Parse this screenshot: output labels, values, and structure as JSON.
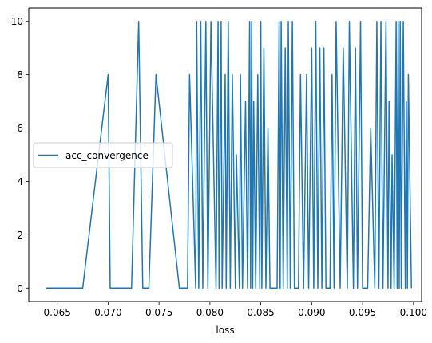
{
  "chart_data": {
    "type": "line",
    "xlabel": "loss",
    "ylabel": "",
    "xlim": [
      0.0622,
      0.1008
    ],
    "ylim": [
      -0.5,
      10.5
    ],
    "xticks": [
      0.065,
      0.07,
      0.075,
      0.08,
      0.085,
      0.09,
      0.095,
      0.1
    ],
    "xtick_labels": [
      "0.065",
      "0.070",
      "0.075",
      "0.080",
      "0.085",
      "0.090",
      "0.095",
      "0.100"
    ],
    "yticks": [
      0,
      2,
      4,
      6,
      8,
      10
    ],
    "ytick_labels": [
      "0",
      "2",
      "4",
      "6",
      "8",
      "10"
    ],
    "grid": false,
    "legend": "center-left",
    "series": [
      {
        "name": "acc_convergence",
        "color": "#1f77b4",
        "x": [
          0.0639,
          0.0675,
          0.07,
          0.0702,
          0.0723,
          0.073,
          0.0734,
          0.074,
          0.0747,
          0.077,
          0.0778,
          0.078,
          0.0786,
          0.0787,
          0.0789,
          0.0791,
          0.0793,
          0.0796,
          0.0798,
          0.0801,
          0.0806,
          0.0808,
          0.0809,
          0.0811,
          0.0812,
          0.0815,
          0.0816,
          0.0818,
          0.082,
          0.0822,
          0.0825,
          0.0826,
          0.0829,
          0.083,
          0.0832,
          0.0835,
          0.0837,
          0.0839,
          0.084,
          0.0841,
          0.0842,
          0.0843,
          0.0845,
          0.0847,
          0.0849,
          0.085,
          0.0851,
          0.0853,
          0.0855,
          0.0857,
          0.0859,
          0.0862,
          0.0866,
          0.0868,
          0.0869,
          0.087,
          0.0872,
          0.0874,
          0.0876,
          0.0877,
          0.0879,
          0.0881,
          0.0883,
          0.0887,
          0.0889,
          0.0892,
          0.0895,
          0.0897,
          0.09,
          0.0902,
          0.0904,
          0.0906,
          0.0908,
          0.091,
          0.0912,
          0.0914,
          0.0918,
          0.092,
          0.0922,
          0.0924,
          0.0928,
          0.0931,
          0.0935,
          0.0937,
          0.0941,
          0.0943,
          0.0945,
          0.0948,
          0.095,
          0.0955,
          0.0958,
          0.0962,
          0.0964,
          0.0966,
          0.0968,
          0.097,
          0.0973,
          0.0975,
          0.0976,
          0.0978,
          0.0979,
          0.0981,
          0.0983,
          0.0984,
          0.0985,
          0.0986,
          0.0987,
          0.0988,
          0.099,
          0.0992,
          0.0993,
          0.0994,
          0.0995,
          0.0998
        ],
        "y": [
          0,
          0,
          8,
          0,
          0,
          10,
          0,
          0,
          8,
          0,
          0,
          8,
          0,
          10,
          0,
          10,
          0,
          10,
          0,
          10,
          0,
          10,
          0,
          10,
          0,
          8,
          0,
          10,
          0,
          8,
          0,
          5,
          0,
          8,
          0,
          7,
          0,
          10,
          0,
          10,
          0,
          7,
          0,
          8,
          0,
          10,
          0,
          9,
          0,
          6,
          0,
          0,
          0,
          10,
          0,
          10,
          0,
          9,
          0,
          10,
          0,
          10,
          0,
          0,
          8,
          0,
          8,
          0,
          9,
          0,
          10,
          0,
          9,
          0,
          9,
          0,
          0,
          8,
          0,
          10,
          0,
          9,
          0,
          10,
          0,
          9,
          0,
          10,
          0,
          0,
          6,
          0,
          10,
          0,
          10,
          0,
          10,
          0,
          7,
          0,
          5,
          0,
          10,
          0,
          10,
          0,
          10,
          0,
          10,
          0,
          7,
          0,
          8,
          0
        ]
      }
    ]
  }
}
